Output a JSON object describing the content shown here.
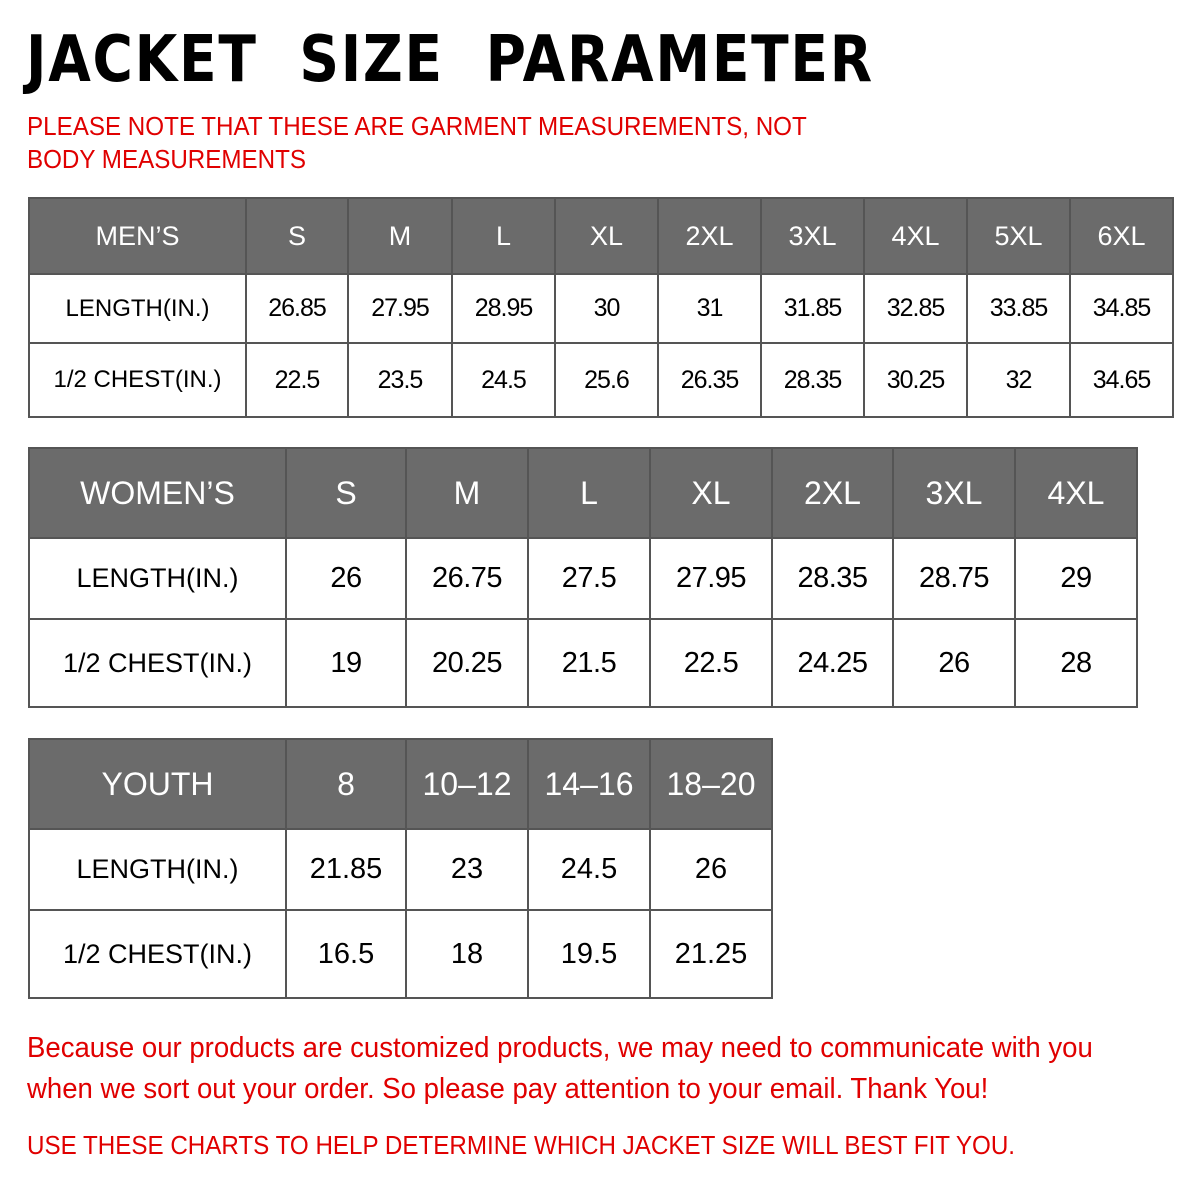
{
  "title": "JACKET  SIZE  PARAMETER",
  "note": "PLEASE NOTE THAT THESE ARE GARMENT MEASUREMENTS, NOT BODY MEASUREMENTS",
  "header_color": "#6b6b6b",
  "accent_color": "#e00000",
  "mens": {
    "header": [
      "MEN’S",
      "S",
      "M",
      "L",
      "XL",
      "2XL",
      "3XL",
      "4XL",
      "5XL",
      "6XL"
    ],
    "rows": [
      [
        "LENGTH(IN.)",
        "26.85",
        "27.95",
        "28.95",
        "30",
        "31",
        "31.85",
        "32.85",
        "33.85",
        "34.85"
      ],
      [
        "1/2 CHEST(IN.)",
        "22.5",
        "23.5",
        "24.5",
        "25.6",
        "26.35",
        "28.35",
        "30.25",
        "32",
        "34.65"
      ]
    ]
  },
  "womens": {
    "header": [
      "WOMEN’S",
      "S",
      "M",
      "L",
      "XL",
      "2XL",
      "3XL",
      "4XL"
    ],
    "rows": [
      [
        "LENGTH(IN.)",
        "26",
        "26.75",
        "27.5",
        "27.95",
        "28.35",
        "28.75",
        "29"
      ],
      [
        "1/2 CHEST(IN.)",
        "19",
        "20.25",
        "21.5",
        "22.5",
        "24.25",
        "26",
        "28"
      ]
    ]
  },
  "youth": {
    "header": [
      "YOUTH",
      "8",
      "10–12",
      "14–16",
      "18–20"
    ],
    "rows": [
      [
        "LENGTH(IN.)",
        "21.85",
        "23",
        "24.5",
        "26"
      ],
      [
        "1/2 CHEST(IN.)",
        "16.5",
        "18",
        "19.5",
        "21.25"
      ]
    ]
  },
  "message": "Because our products are customized products, we may need to communicate with you when we sort out your order. So please pay attention to your email. Thank You!",
  "footer": "USE THESE CHARTS TO HELP DETERMINE WHICH JACKET SIZE WILL BEST FIT YOU."
}
